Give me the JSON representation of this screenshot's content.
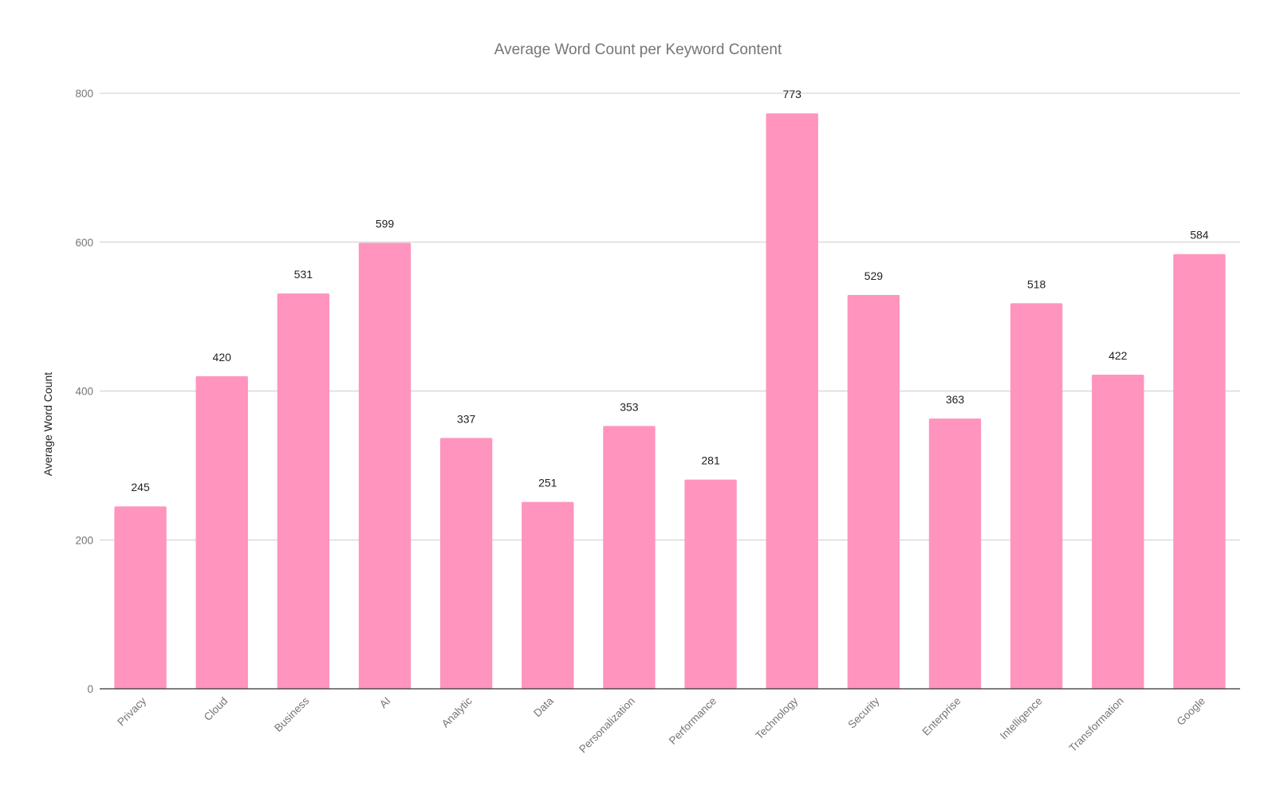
{
  "chart_data": {
    "type": "bar",
    "title": "Average Word Count per Keyword Content",
    "xlabel": "",
    "ylabel": "Average Word Count",
    "ylim": [
      0,
      800
    ],
    "yticks": [
      0,
      200,
      400,
      600,
      800
    ],
    "grid": true,
    "legend": "none",
    "bar_color": "#ff94be",
    "categories": [
      "Privacy",
      "Cloud",
      "Business",
      "AI",
      "Analytic",
      "Data",
      "Personalization",
      "Performance",
      "Technology",
      "Security",
      "Enterprise",
      "Intelligence",
      "Transformation",
      "Google"
    ],
    "values": [
      245,
      420,
      531,
      599,
      337,
      251,
      353,
      281,
      773,
      529,
      363,
      518,
      422,
      584
    ]
  }
}
